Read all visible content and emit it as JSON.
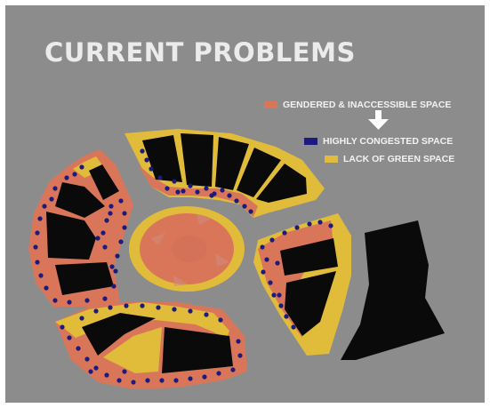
{
  "title": "CURRENT PROBLEMS",
  "legend": [
    {
      "label": "GENDERED & INACCESSIBLE SPACE",
      "color": "#d9765a"
    },
    {
      "label": "HIGHLY CONGESTED SPACE",
      "color": "#1c1a7a"
    },
    {
      "label": "LACK OF GREEN SPACE",
      "color": "#e0bc3a"
    }
  ],
  "arrow_icon": "down-arrow-icon",
  "colors": {
    "background": "#8c8c8c",
    "building": "#0a0a0a",
    "gendered": "#d9765a",
    "congested": "#1c1a7a",
    "green_lack": "#e0bc3a"
  }
}
